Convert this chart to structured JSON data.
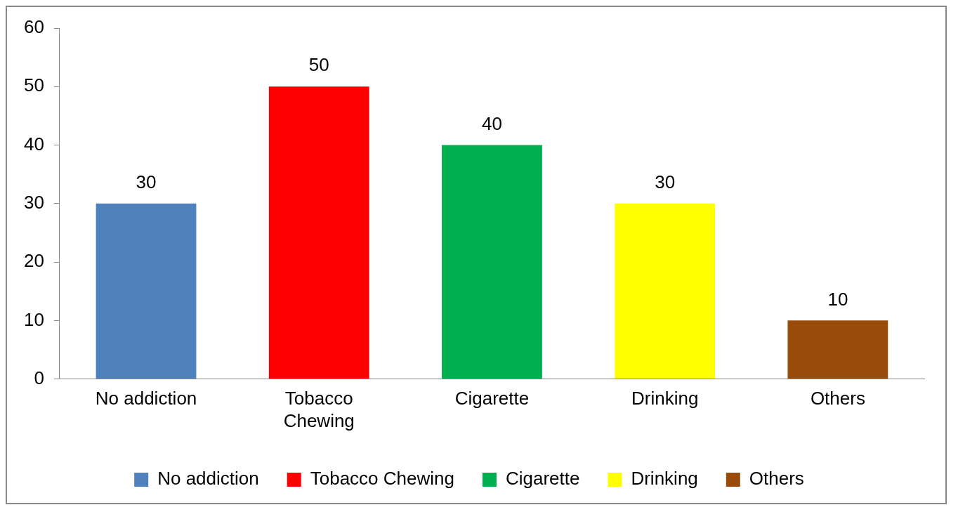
{
  "chart_data": {
    "type": "bar",
    "categories": [
      "No addiction",
      "Tobacco Chewing",
      "Cigarette",
      "Drinking",
      "Others"
    ],
    "series": [
      {
        "name": "No addiction",
        "color": "#4f81bd",
        "values": [
          30,
          null,
          null,
          null,
          null
        ]
      },
      {
        "name": "Tobacco Chewing",
        "color": "#ff0000",
        "values": [
          null,
          50,
          null,
          null,
          null
        ]
      },
      {
        "name": "Cigarette",
        "color": "#00b050",
        "values": [
          null,
          null,
          40,
          null,
          null
        ]
      },
      {
        "name": "Drinking",
        "color": "#ffff00",
        "values": [
          null,
          null,
          null,
          30,
          null
        ]
      },
      {
        "name": "Others",
        "color": "#994c0a",
        "values": [
          null,
          null,
          null,
          null,
          10
        ]
      }
    ],
    "ylim": [
      0,
      60
    ],
    "yticks": [
      0,
      10,
      20,
      30,
      40,
      50,
      60
    ],
    "grid": false,
    "legend": "bottom",
    "data_labels": true
  }
}
